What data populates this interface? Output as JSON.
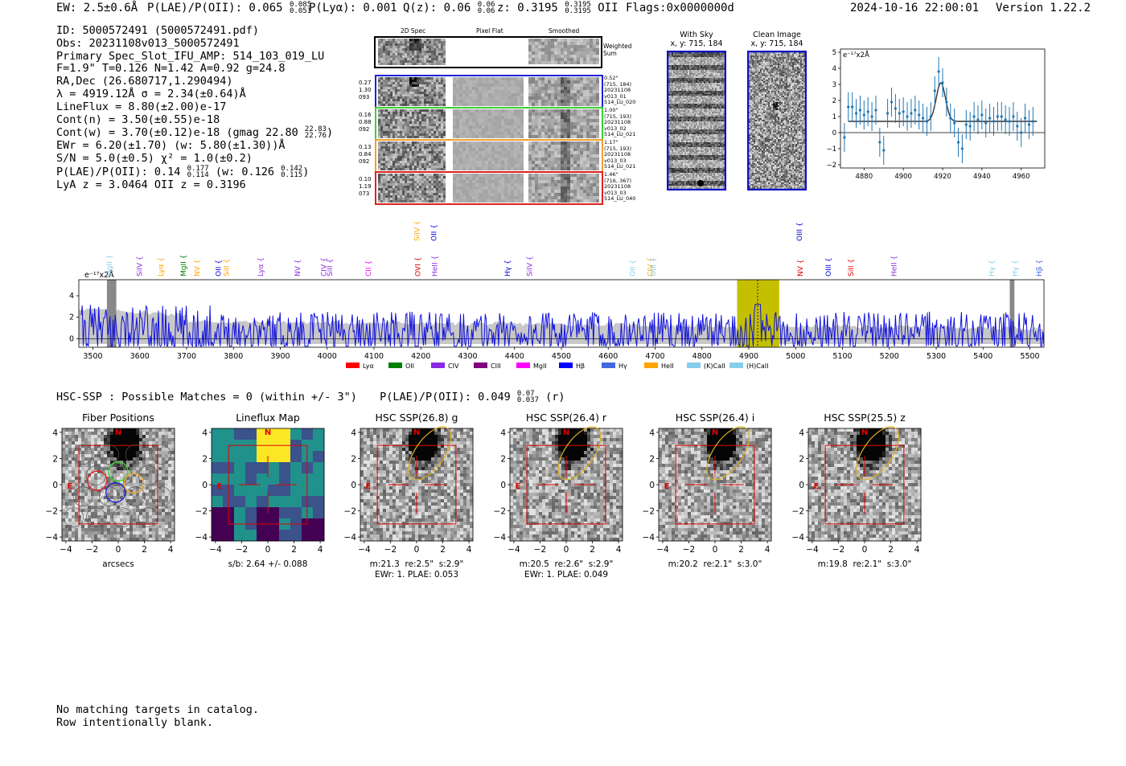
{
  "header": {
    "ew": "EW: 2.5±0.6Å",
    "plae": "P(LAE)/P(OII): 0.065",
    "plae_hi": "0.085",
    "plae_lo": "0.051",
    "plya": "P(Lyα): 0.001",
    "qz": "Q(z): 0.06",
    "qz_hi": "0.06",
    "qz_lo": "0.06",
    "z": "z: 0.3195",
    "z_hi": "0.3195",
    "z_lo": "0.3195",
    "z_line": "OII",
    "flags": "Flags:0x0000000d",
    "datetime": "2024-10-16 22:00:01",
    "version": "Version 1.22.2"
  },
  "info": {
    "id": "ID: 5000572491 (5000572491.pdf)",
    "obs": "Obs: 20231108v013_5000572491",
    "primary": "Primary Spec_Slot_IFU_AMP: 514_103_019_LU",
    "fwhm": "F=1.9\"  T=0.126  N=1.42  A=0.92  g=24.8",
    "radec": "RA,Dec (26.680717,1.290494)",
    "lambda": "λ = 4919.12Å   σ = 2.34(±0.64)Å",
    "lineflux": "LineFlux = 8.80(±2.00)e-17",
    "contn": "Cont(n) = 3.50(±0.55)e-18",
    "contw": "Cont(w) = 3.70(±0.12)e-18 (gmag 22.80",
    "contw_hi": "22.83",
    "contw_lo": "22.76",
    "contw_end": ")",
    "ewr": "EWr = 6.20(±1.70) (w: 5.80(±1.30))Å",
    "sn": "S/N = 5.0(±0.5)   χ² = 1.0(±0.2)",
    "plae": "P(LAE)/P(OII): 0.14",
    "plae_hi": "0.177",
    "plae_lo": "0.114",
    "plae_w": "(w: 0.126",
    "plae_w_hi": "0.142",
    "plae_w_lo": "0.115",
    "plae_end": ")",
    "lyaz": "LyA z = 3.0464   OII z = 0.3196"
  },
  "spec2d": {
    "col_titles": [
      "2D Spec",
      "Pixel Flat",
      "Smoothed"
    ],
    "weighted": "Weighted\nSum",
    "rows": [
      {
        "left": "0.27\n1.30\n093",
        "right": "0.52\"\n(715, 184)\n20231108\nv013_01\n514_LU_020",
        "color": "#1f1fd6"
      },
      {
        "left": "0.16\n0.88\n092",
        "right": "1.00\"\n(715, 193)\n20231108\nv013_02\n514_LU_021",
        "color": "#3ad12f"
      },
      {
        "left": "0.13\n0.84\n092",
        "right": "1.17\"\n(715, 193)\n20231108\nv013_03\n514_LU_021",
        "color": "#f0a030"
      },
      {
        "left": "0.10\n1.19\n073",
        "right": "1.46\"\n(716, 367)\n20231108\nv013_03\n514_LU_040",
        "color": "#e02020"
      }
    ]
  },
  "cutouts": {
    "with_sky": "With Sky",
    "with_sky_xy": "x, y: 715, 184",
    "clean": "Clean Image",
    "clean_xy": "x, y: 715, 184"
  },
  "chart_data": [
    {
      "type": "scatter",
      "name": "line-fit",
      "ylabel": "e⁻¹⁷x2Å",
      "xlim": [
        4868,
        4972
      ],
      "ylim": [
        -2.2,
        5.2
      ],
      "xticks": [
        4880,
        4900,
        4920,
        4940,
        4960
      ],
      "yticks": [
        -2,
        -1,
        0,
        1,
        2,
        3,
        4,
        5
      ],
      "x": [
        4870,
        4872,
        4874,
        4876,
        4878,
        4880,
        4882,
        4884,
        4886,
        4888,
        4890,
        4892,
        4894,
        4896,
        4898,
        4900,
        4902,
        4904,
        4906,
        4908,
        4910,
        4912,
        4914,
        4916,
        4918,
        4920,
        4922,
        4924,
        4926,
        4928,
        4930,
        4932,
        4934,
        4936,
        4938,
        4940,
        4942,
        4944,
        4946,
        4948,
        4950,
        4952,
        4954,
        4956,
        4958,
        4960,
        4962,
        4964,
        4966
      ],
      "y": [
        -0.3,
        1.6,
        1.6,
        1.2,
        1.4,
        1.1,
        1.3,
        1.0,
        1.4,
        -0.6,
        -1.1,
        1.2,
        1.9,
        1.5,
        1.2,
        1.3,
        1.0,
        1.2,
        1.4,
        1.1,
        0.9,
        0.7,
        1.0,
        2.6,
        3.8,
        3.1,
        1.9,
        0.9,
        0.6,
        -0.6,
        -1.0,
        0.5,
        0.4,
        1.0,
        0.8,
        1.1,
        0.6,
        0.9,
        0.7,
        1.0,
        1.0,
        0.8,
        0.7,
        1.0,
        0.4,
        0.0,
        0.9,
        0.5,
        0.7
      ],
      "err": [
        0.9,
        0.9,
        0.9,
        0.9,
        0.9,
        0.9,
        0.9,
        0.9,
        0.9,
        0.9,
        0.9,
        0.9,
        0.9,
        0.9,
        0.9,
        0.9,
        0.9,
        0.9,
        0.9,
        0.9,
        0.9,
        0.9,
        0.9,
        0.9,
        0.9,
        0.9,
        0.9,
        0.9,
        0.9,
        0.9,
        0.9,
        0.9,
        0.9,
        0.9,
        0.9,
        0.9,
        0.9,
        0.9,
        0.9,
        0.9,
        0.9,
        0.9,
        0.9,
        0.9,
        0.9,
        0.9,
        0.9,
        0.9,
        0.9
      ],
      "fit": {
        "continuum": 0.7,
        "center": 4919.1,
        "sigma": 2.34,
        "peak": 3.1
      }
    },
    {
      "type": "line",
      "name": "full-spectrum",
      "ylabel": "e⁻¹⁷x2Å",
      "xlim": [
        3470,
        5530
      ],
      "ylim": [
        -0.8,
        5.5
      ],
      "xticks": [
        3500,
        3600,
        3700,
        3800,
        3900,
        4000,
        4100,
        4200,
        4300,
        4400,
        4500,
        4600,
        4700,
        4800,
        4900,
        5000,
        5100,
        5200,
        5300,
        5400,
        5500
      ],
      "yticks": [
        0,
        2,
        4
      ],
      "highlight_range": [
        4875,
        4965
      ],
      "line_center": 4919,
      "masked": [
        [
          3530,
          3550
        ],
        [
          5457,
          5467
        ]
      ],
      "emission_lines": [
        {
          "label": "MgII",
          "wave": 3535,
          "color": "#87ceeb",
          "row": 2
        },
        {
          "label": "SiIV",
          "wave": 3600,
          "color": "#8a2be2",
          "row": 2
        },
        {
          "label": "Lyα",
          "wave": 3645,
          "color": "#ffa500",
          "row": 2
        },
        {
          "label": "MgII",
          "wave": 3693,
          "color": "#008000",
          "row": 2
        },
        {
          "label": "NV",
          "wave": 3722,
          "color": "#ffa500",
          "row": 2
        },
        {
          "label": "OII",
          "wave": 3768,
          "color": "#0000cd",
          "row": 2
        },
        {
          "label": "SiII",
          "wave": 3785,
          "color": "#ffa500",
          "row": 2
        },
        {
          "label": "Lyα",
          "wave": 3858,
          "color": "#8a2be2",
          "row": 2
        },
        {
          "label": "NV",
          "wave": 3937,
          "color": "#8a2be2",
          "row": 2
        },
        {
          "label": "CIV",
          "wave": 3993,
          "color": "#8a2be2",
          "row": 2
        },
        {
          "label": "SiII",
          "wave": 4006,
          "color": "#8a2be2",
          "row": 2
        },
        {
          "label": "CII",
          "wave": 4088,
          "color": "#ff00ff",
          "row": 2
        },
        {
          "label": "SiIV",
          "wave": 4192,
          "color": "#ffa500",
          "row": 1
        },
        {
          "label": "OVI",
          "wave": 4194,
          "color": "#e00000",
          "row": 2
        },
        {
          "label": "OII",
          "wave": 4228,
          "color": "#0000cd",
          "row": 1
        },
        {
          "label": "HeII",
          "wave": 4230,
          "color": "#8a2be2",
          "row": 2
        },
        {
          "label": "Hγ",
          "wave": 4385,
          "color": "#0000cd",
          "row": 2
        },
        {
          "label": "SiIV",
          "wave": 4432,
          "color": "#8a2be2",
          "row": 2
        },
        {
          "label": "OII",
          "wave": 4652,
          "color": "#87ceeb",
          "row": 2
        },
        {
          "label": "CIV",
          "wave": 4690,
          "color": "#ffa500",
          "row": 2
        },
        {
          "label": "OIII",
          "wave": 4696,
          "color": "#87ceeb",
          "row": 2
        },
        {
          "label": "OIII",
          "wave": 5008,
          "color": "#0000cd",
          "row": 1
        },
        {
          "label": "NV",
          "wave": 5010,
          "color": "#e00000",
          "row": 2
        },
        {
          "label": "OIII",
          "wave": 5070,
          "color": "#0000cd",
          "row": 2
        },
        {
          "label": "SiII",
          "wave": 5118,
          "color": "#e00000",
          "row": 2
        },
        {
          "label": "HeII",
          "wave": 5210,
          "color": "#8a2be2",
          "row": 2
        },
        {
          "label": "Hγ",
          "wave": 5418,
          "color": "#87ceeb",
          "row": 2
        },
        {
          "label": "Hγ",
          "wave": 5468,
          "color": "#87ceeb",
          "row": 2
        },
        {
          "label": "Hβ",
          "wave": 5520,
          "color": "#4169e1",
          "row": 2
        }
      ],
      "legend": [
        {
          "label": "Lyα",
          "color": "#ff0000"
        },
        {
          "label": "OII",
          "color": "#008000"
        },
        {
          "label": "CIV",
          "color": "#8a2be2"
        },
        {
          "label": "CIII",
          "color": "#800080"
        },
        {
          "label": "MgII",
          "color": "#ff00ff"
        },
        {
          "label": "Hβ",
          "color": "#0000ff"
        },
        {
          "label": "Hγ",
          "color": "#4169e1"
        },
        {
          "label": "HeII",
          "color": "#ffa500"
        },
        {
          "label": "(K)CaII",
          "color": "#87ceeb"
        },
        {
          "label": "(H)CaII",
          "color": "#87ceeb"
        }
      ]
    }
  ],
  "hsc": {
    "summary": "HSC-SSP : Possible Matches = 0 (within +/- 3\")",
    "plae": "P(LAE)/P(OII): 0.049",
    "plae_hi": "0.07",
    "plae_lo": "0.037",
    "band": "(r)",
    "panels": [
      {
        "title": "Fiber Positions",
        "xlabel": "arcsecs",
        "xlabel2": "",
        "kind": "fiber"
      },
      {
        "title": "Lineflux Map",
        "xlabel": "s/b: 2.64 +/- 0.088",
        "xlabel2": "",
        "kind": "flux"
      },
      {
        "title": "HSC SSP(26.8) g",
        "xlabel": "m:21.3  re:2.5\"  s:2.9\"",
        "xlabel2": "EWr: 1. PLAE: 0.053",
        "kind": "img"
      },
      {
        "title": "HSC SSP(26.4) r",
        "xlabel": "m:20.5  re:2.6\"  s:2.9\"",
        "xlabel2": "EWr: 1. PLAE: 0.049",
        "kind": "img"
      },
      {
        "title": "HSC SSP(26.4) i",
        "xlabel": "m:20.2  re:2.1\"  s:3.0\"",
        "xlabel2": "",
        "kind": "img"
      },
      {
        "title": "HSC SSP(25.5) z",
        "xlabel": "m:19.8  re:2.1\"  s:3.0\"",
        "xlabel2": "",
        "kind": "img"
      }
    ],
    "ticks": [
      "−4",
      "−2",
      "0",
      "2",
      "4"
    ],
    "n_label": "N",
    "e_label": "E"
  },
  "footer": {
    "line1": "No matching targets in catalog.",
    "line2": "Row intentionally blank."
  }
}
